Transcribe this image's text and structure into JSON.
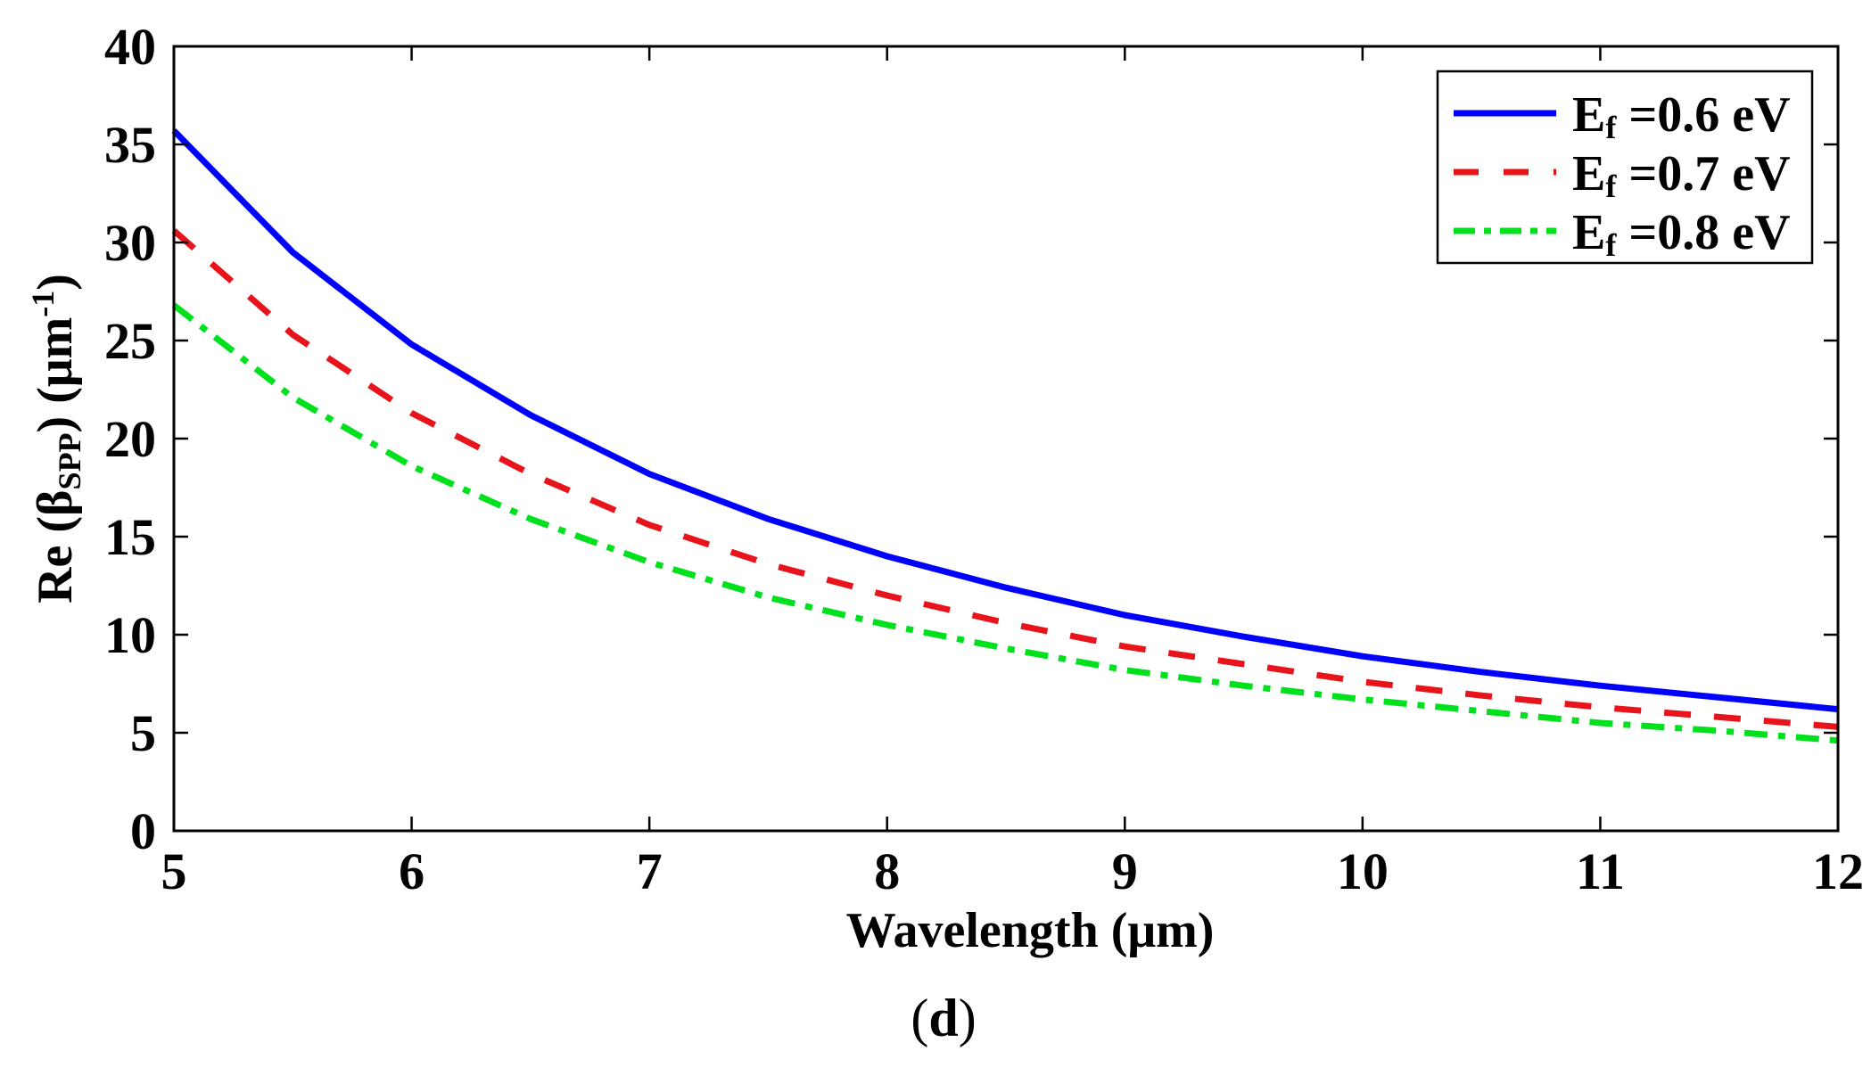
{
  "chart_data": {
    "type": "line",
    "title": "",
    "panel_label": {
      "open": "(",
      "letter": "d",
      "close": ")"
    },
    "xlabel": "Wavelength (μm)",
    "ylabel": {
      "prefix": "Re (β",
      "sub": "SPP",
      "mid": ") (μm",
      "sup": "-1",
      "suffix": ")"
    },
    "xlim": [
      5,
      12
    ],
    "ylim": [
      0,
      40
    ],
    "xticks": [
      5,
      6,
      7,
      8,
      9,
      10,
      11,
      12
    ],
    "yticks": [
      0,
      5,
      10,
      15,
      20,
      25,
      30,
      35,
      40
    ],
    "grid": false,
    "legend_position": "top-right",
    "x": [
      5,
      5.5,
      6,
      6.5,
      7,
      7.5,
      8,
      8.5,
      9,
      9.5,
      10,
      10.5,
      11,
      11.5,
      12
    ],
    "series": [
      {
        "name": "Ef =0.6 eV",
        "label_main": "E",
        "label_sub": "f",
        "label_rest": " =0.6 eV",
        "color": "#0000ff",
        "style": "solid",
        "values": [
          35.7,
          29.5,
          24.8,
          21.2,
          18.2,
          15.9,
          14.0,
          12.4,
          11.0,
          9.9,
          8.9,
          8.1,
          7.4,
          6.8,
          6.2
        ]
      },
      {
        "name": "Ef =0.7 eV",
        "label_main": "E",
        "label_sub": "f",
        "label_rest": " =0.7 eV",
        "color": "#e8141b",
        "style": "dashed",
        "values": [
          30.6,
          25.3,
          21.3,
          18.2,
          15.6,
          13.6,
          12.0,
          10.6,
          9.4,
          8.5,
          7.6,
          6.9,
          6.3,
          5.8,
          5.3
        ]
      },
      {
        "name": "Ef =0.8 eV",
        "label_main": "E",
        "label_sub": "f",
        "label_rest": " =0.8 eV",
        "color": "#00e01c",
        "style": "dashdot",
        "values": [
          26.8,
          22.1,
          18.6,
          15.9,
          13.7,
          11.9,
          10.5,
          9.3,
          8.2,
          7.4,
          6.7,
          6.1,
          5.5,
          5.1,
          4.6
        ]
      }
    ]
  }
}
